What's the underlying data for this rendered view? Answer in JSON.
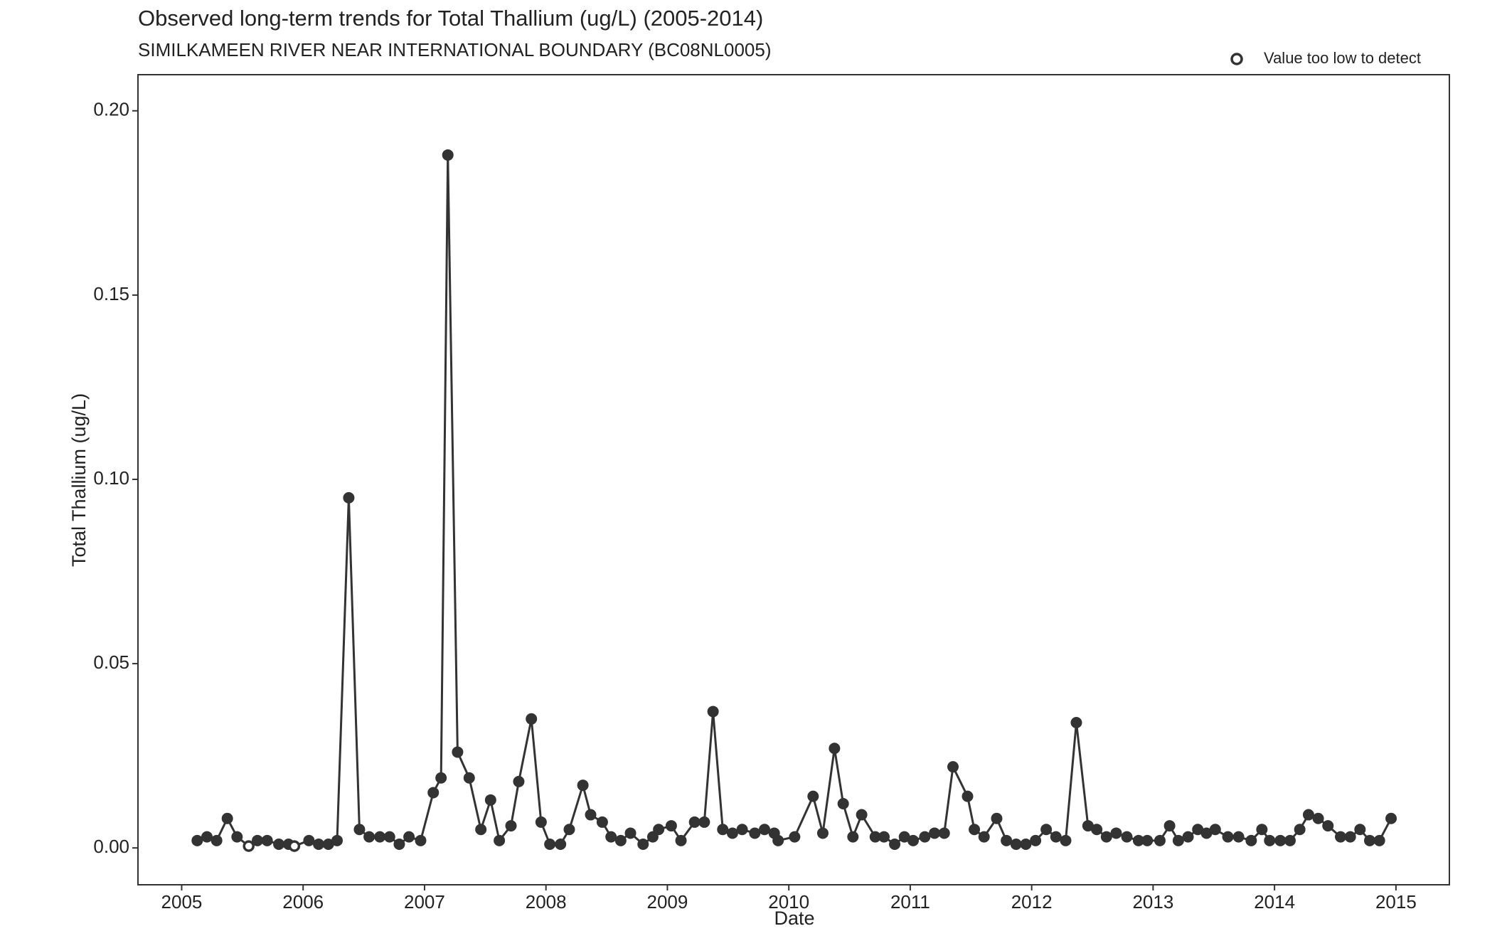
{
  "chart_data": {
    "type": "line",
    "title": "Observed long-term trends for Total Thallium (ug/L) (2005-2014)",
    "subtitle": "SIMILKAMEEN RIVER NEAR INTERNATIONAL BOUNDARY (BC08NL0005)",
    "x_label": "Date",
    "y_label": "Total Thallium (ug/L)",
    "xlim": [
      2004.64,
      2015.44
    ],
    "xticks": [
      2005,
      2006,
      2007,
      2008,
      2009,
      2010,
      2011,
      2012,
      2013,
      2014,
      2015
    ],
    "ylim": [
      -0.01,
      0.2098
    ],
    "yticks": [
      {
        "value": 0,
        "label": "0.00"
      },
      0.05,
      {
        "value": 0.1,
        "label": "0.10"
      },
      0.15,
      {
        "value": 0.2,
        "label": "0.20"
      }
    ],
    "color": "#333333",
    "series": [
      {
        "marker": "filled",
        "color": "#333333",
        "x": [
          2005.128,
          2005.208,
          2005.288,
          2005.376,
          2005.456,
          2005.624,
          2005.704,
          2005.8,
          2005.88,
          2006.048,
          2006.128,
          2006.208,
          2006.28,
          2006.376,
          2006.464,
          2006.544,
          2006.632,
          2006.712,
          2006.792,
          2006.872,
          2006.968,
          2007.072,
          2007.136,
          2007.192,
          2007.272,
          2007.368,
          2007.464,
          2007.544,
          2007.616,
          2007.712,
          2007.776,
          2007.88,
          2007.96,
          2008.032,
          2008.12,
          2008.192,
          2008.304,
          2008.368,
          2008.464,
          2008.536,
          2008.616,
          2008.696,
          2008.8,
          2008.88,
          2008.928,
          2009.032,
          2009.112,
          2009.224,
          2009.304,
          2009.376,
          2009.456,
          2009.536,
          2009.616,
          2009.72,
          2009.8,
          2009.88,
          2009.912,
          2010.048,
          2010.2,
          2010.28,
          2010.376,
          2010.448,
          2010.528,
          2010.6,
          2010.712,
          2010.784,
          2010.872,
          2010.952,
          2011.024,
          2011.12,
          2011.2,
          2011.28,
          2011.352,
          2011.472,
          2011.528,
          2011.608,
          2011.712,
          2011.792,
          2011.872,
          2011.952,
          2012.032,
          2012.12,
          2012.2,
          2012.28,
          2012.368,
          2012.464,
          2012.536,
          2012.616,
          2012.696,
          2012.784,
          2012.88,
          2012.952,
          2013.056,
          2013.136,
          2013.208,
          2013.288,
          2013.368,
          2013.44,
          2013.512,
          2013.616,
          2013.704,
          2013.808,
          2013.896,
          2013.96,
          2014.048,
          2014.128,
          2014.208,
          2014.28,
          2014.36,
          2014.44,
          2014.544,
          2014.624,
          2014.704,
          2014.784,
          2014.864,
          2014.96
        ],
        "values": [
          0.002,
          0.003,
          0.002,
          0.008,
          0.003,
          0.002,
          0.002,
          0.001,
          0.001,
          0.002,
          0.001,
          0.001,
          0.002,
          0.095,
          0.005,
          0.003,
          0.003,
          0.003,
          0.001,
          0.003,
          0.002,
          0.015,
          0.019,
          0.188,
          0.026,
          0.019,
          0.005,
          0.013,
          0.002,
          0.006,
          0.018,
          0.035,
          0.007,
          0.001,
          0.001,
          0.005,
          0.017,
          0.009,
          0.007,
          0.003,
          0.002,
          0.004,
          0.001,
          0.003,
          0.005,
          0.006,
          0.002,
          0.007,
          0.007,
          0.037,
          0.005,
          0.004,
          0.005,
          0.004,
          0.005,
          0.004,
          0.002,
          0.003,
          0.014,
          0.004,
          0.027,
          0.012,
          0.003,
          0.009,
          0.003,
          0.003,
          0.001,
          0.003,
          0.002,
          0.003,
          0.004,
          0.004,
          0.022,
          0.014,
          0.005,
          0.003,
          0.008,
          0.002,
          0.001,
          0.001,
          0.002,
          0.005,
          0.003,
          0.002,
          0.034,
          0.006,
          0.005,
          0.003,
          0.004,
          0.003,
          0.002,
          0.002,
          0.002,
          0.006,
          0.002,
          0.003,
          0.005,
          0.004,
          0.005,
          0.003,
          0.003,
          0.002,
          0.005,
          0.002,
          0.002,
          0.002,
          0.005,
          0.009,
          0.008,
          0.006,
          0.003,
          0.003,
          0.005,
          0.002,
          0.002,
          0.008
        ]
      },
      {
        "name": "Value too low to detect",
        "marker": "open",
        "color": "#333333",
        "x": [
          2005.552,
          2005.928
        ],
        "values": [
          0.0005,
          0.0005
        ]
      }
    ],
    "legend": "top-right"
  }
}
